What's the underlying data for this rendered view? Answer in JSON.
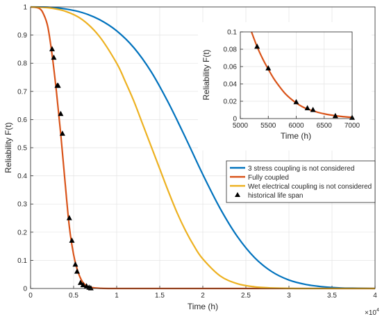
{
  "chart_data": [
    {
      "id": "main",
      "type": "line",
      "xlabel": "Time (h)",
      "ylabel": "Reliability F(t)",
      "x_multiplier_label": "×10",
      "x_multiplier_exp": "4",
      "xlim": [
        0,
        4
      ],
      "ylim": [
        0,
        1
      ],
      "xticks": [
        0,
        0.5,
        1,
        1.5,
        2,
        2.5,
        3,
        3.5,
        4
      ],
      "xtick_labels": [
        "0",
        "0.5",
        "1",
        "1.5",
        "2",
        "2.5",
        "3",
        "3.5",
        "4"
      ],
      "yticks": [
        0,
        0.1,
        0.2,
        0.3,
        0.4,
        0.5,
        0.6,
        0.7,
        0.8,
        0.9,
        1
      ],
      "ytick_labels": [
        "0",
        "0.1",
        "0.2",
        "0.3",
        "0.4",
        "0.5",
        "0.6",
        "0.7",
        "0.8",
        "0.9",
        "1"
      ],
      "grid": true,
      "legend_position": "center-right",
      "series": [
        {
          "name": "3 stress coupling is not considered",
          "color": "#0072BD",
          "x": [
            0,
            0.2,
            0.4,
            0.6,
            0.8,
            1.0,
            1.2,
            1.4,
            1.6,
            1.8,
            2.0,
            2.2,
            2.4,
            2.6,
            2.8,
            3.0,
            3.2,
            3.4,
            3.6,
            3.8,
            4.0
          ],
          "y": [
            1.0,
            0.999,
            0.993,
            0.98,
            0.955,
            0.915,
            0.855,
            0.77,
            0.66,
            0.535,
            0.405,
            0.285,
            0.185,
            0.11,
            0.06,
            0.03,
            0.014,
            0.006,
            0.002,
            0.001,
            0.0
          ]
        },
        {
          "name": "Fully coupled",
          "color": "#D95319",
          "x": [
            0,
            0.1,
            0.15,
            0.2,
            0.25,
            0.3,
            0.35,
            0.4,
            0.45,
            0.5,
            0.55,
            0.6,
            0.65,
            0.7,
            0.8,
            1.0,
            2.0,
            3.0,
            4.0
          ],
          "y": [
            1.0,
            0.995,
            0.975,
            0.93,
            0.83,
            0.7,
            0.55,
            0.38,
            0.22,
            0.12,
            0.06,
            0.025,
            0.01,
            0.004,
            0.001,
            0.0,
            0.0,
            0.0,
            0.0
          ]
        },
        {
          "name": "Wet electrical coupling is not considered",
          "color": "#EDB120",
          "x": [
            0,
            0.2,
            0.4,
            0.6,
            0.8,
            1.0,
            1.1,
            1.2,
            1.3,
            1.4,
            1.5,
            1.6,
            1.7,
            1.8,
            1.9,
            2.0,
            2.2,
            2.4,
            2.6,
            2.8,
            3.0,
            3.2,
            4.0
          ],
          "y": [
            1.0,
            0.997,
            0.985,
            0.955,
            0.895,
            0.8,
            0.735,
            0.665,
            0.585,
            0.505,
            0.425,
            0.345,
            0.27,
            0.205,
            0.15,
            0.105,
            0.045,
            0.017,
            0.006,
            0.002,
            0.0005,
            0.0,
            0.0
          ]
        }
      ],
      "markers": {
        "name": "historical life span",
        "color": "#000000",
        "x": [
          0.25,
          0.27,
          0.31,
          0.32,
          0.35,
          0.37,
          0.45,
          0.48,
          0.52,
          0.54,
          0.58,
          0.61,
          0.65,
          0.68,
          0.7
        ],
        "y": [
          0.85,
          0.82,
          0.72,
          0.72,
          0.62,
          0.55,
          0.25,
          0.17,
          0.085,
          0.06,
          0.02,
          0.012,
          0.008,
          0.003,
          0.001
        ]
      }
    },
    {
      "id": "inset",
      "type": "line",
      "xlabel": "Time (h)",
      "ylabel": "Reliability F(t)",
      "xlim": [
        5000,
        7000
      ],
      "ylim": [
        0,
        0.1
      ],
      "xticks": [
        5000,
        5500,
        6000,
        6500,
        7000
      ],
      "xtick_labels": [
        "5000",
        "5500",
        "6000",
        "6500",
        "7000"
      ],
      "yticks": [
        0,
        0.02,
        0.04,
        0.06,
        0.08,
        0.1
      ],
      "ytick_labels": [
        "0",
        "0.02",
        "0.04",
        "0.06",
        "0.08",
        "0.1"
      ],
      "grid": true,
      "series": [
        {
          "name": "Fully coupled",
          "color": "#D95319",
          "x": [
            5200,
            5300,
            5400,
            5500,
            5600,
            5700,
            5800,
            5900,
            6000,
            6100,
            6200,
            6300,
            6400,
            6500,
            6600,
            6700,
            6800,
            6900,
            7000
          ],
          "y": [
            0.1,
            0.083,
            0.069,
            0.057,
            0.046,
            0.037,
            0.029,
            0.023,
            0.018,
            0.014,
            0.011,
            0.009,
            0.007,
            0.0055,
            0.0043,
            0.0033,
            0.0025,
            0.0019,
            0.0014
          ]
        }
      ],
      "markers": {
        "name": "historical life span",
        "color": "#000000",
        "x": [
          5300,
          5500,
          6000,
          6200,
          6300,
          6700,
          7000
        ],
        "y": [
          0.083,
          0.058,
          0.019,
          0.012,
          0.01,
          0.003,
          0.001
        ]
      }
    }
  ]
}
